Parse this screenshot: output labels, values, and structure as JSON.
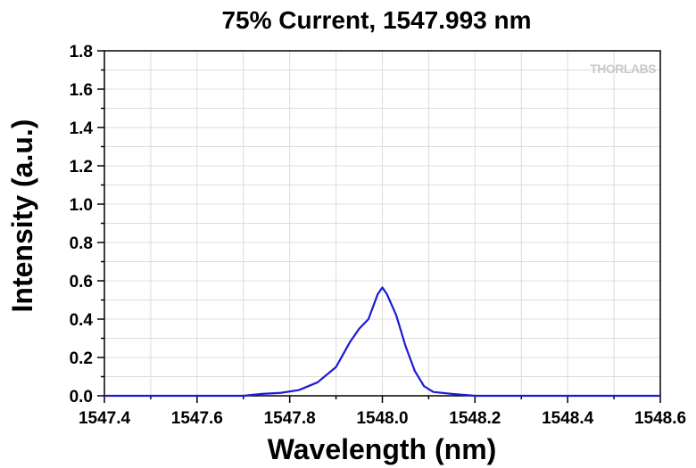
{
  "chart_data": {
    "type": "line",
    "title": "75% Current, 1547.993 nm",
    "xlabel": "Wavelength (nm)",
    "ylabel": "Intensity (a.u.)",
    "xlim": [
      1547.4,
      1548.6
    ],
    "ylim": [
      0,
      1.8
    ],
    "xticks": [
      "1547.4",
      "1547.6",
      "1547.8",
      "1548.0",
      "1548.2",
      "1548.4",
      "1548.6"
    ],
    "yticks": [
      "0.0",
      "0.2",
      "0.4",
      "0.6",
      "0.8",
      "1.0",
      "1.2",
      "1.4",
      "1.6",
      "1.8"
    ],
    "grid": true,
    "legend": "none",
    "line_color": "#1a1ad4",
    "series": [
      {
        "x": [
          1547.4,
          1547.7,
          1547.74,
          1547.78,
          1547.82,
          1547.86,
          1547.9,
          1547.93,
          1547.95,
          1547.97,
          1547.99,
          1548.0,
          1548.01,
          1548.03,
          1548.05,
          1548.07,
          1548.09,
          1548.11,
          1548.15,
          1548.2,
          1548.6
        ],
        "y": [
          0.0,
          0.0,
          0.01,
          0.015,
          0.03,
          0.07,
          0.15,
          0.28,
          0.35,
          0.4,
          0.53,
          0.565,
          0.53,
          0.42,
          0.26,
          0.13,
          0.05,
          0.02,
          0.01,
          0.0,
          0.0
        ]
      }
    ]
  },
  "watermark": "THORLABS"
}
